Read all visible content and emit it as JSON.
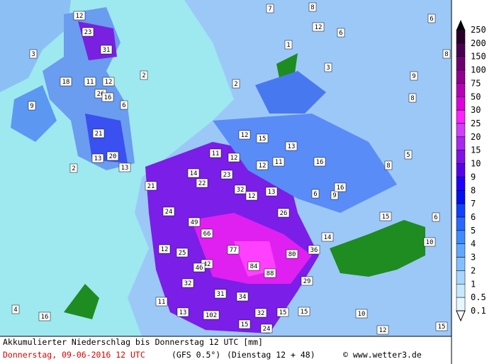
{
  "map": {
    "labels": [
      "12",
      "23",
      "31",
      "3",
      "18",
      "11",
      "12",
      "26",
      "16",
      "9",
      "2",
      "6",
      "21",
      "13",
      "20",
      "13",
      "2",
      "7",
      "8",
      "12",
      "6",
      "1",
      "3",
      "2",
      "12",
      "15",
      "11",
      "12",
      "13",
      "23",
      "14",
      "22",
      "21",
      "32",
      "12",
      "13",
      "12",
      "11",
      "16",
      "6",
      "9",
      "16",
      "24",
      "49",
      "66",
      "26",
      "12",
      "25",
      "77",
      "80",
      "36",
      "84",
      "42",
      "46",
      "88",
      "32",
      "29",
      "31",
      "34",
      "11",
      "13",
      "102",
      "32",
      "15",
      "15",
      "24",
      "15",
      "16",
      "4",
      "10",
      "12",
      "15",
      "10",
      "14",
      "15",
      "6",
      "8",
      "5",
      "8",
      "9",
      "6",
      "8"
    ]
  },
  "legend": {
    "labels": [
      "250",
      "200",
      "150",
      "100",
      "75",
      "50",
      "30",
      "25",
      "20",
      "15",
      "10",
      "9",
      "8",
      "7",
      "6",
      "5",
      "4",
      "3",
      "2",
      "1",
      "0.5",
      "0.1"
    ],
    "colors": [
      "#2a002a",
      "#4a0050",
      "#6e0070",
      "#900090",
      "#b400b4",
      "#dc00dc",
      "#ff20ff",
      "#d040f8",
      "#a828f0",
      "#8010e8",
      "#5800e8",
      "#2000ff",
      "#0010f0",
      "#1040ff",
      "#2868ff",
      "#3c8cff",
      "#60a8ff",
      "#84c0ff",
      "#a8d6ff",
      "#c8e8ff",
      "#e6f6ff"
    ]
  },
  "footer": {
    "title": "Akkumulierter Niederschlag bis Donnerstag 12 UTC [mm]",
    "date": "Donnerstag, 09-06-2016  12 UTC",
    "model": "(GFS 0.5°)",
    "run": "(Dienstag 12 + 48)",
    "credit": "© www.wetter3.de"
  }
}
